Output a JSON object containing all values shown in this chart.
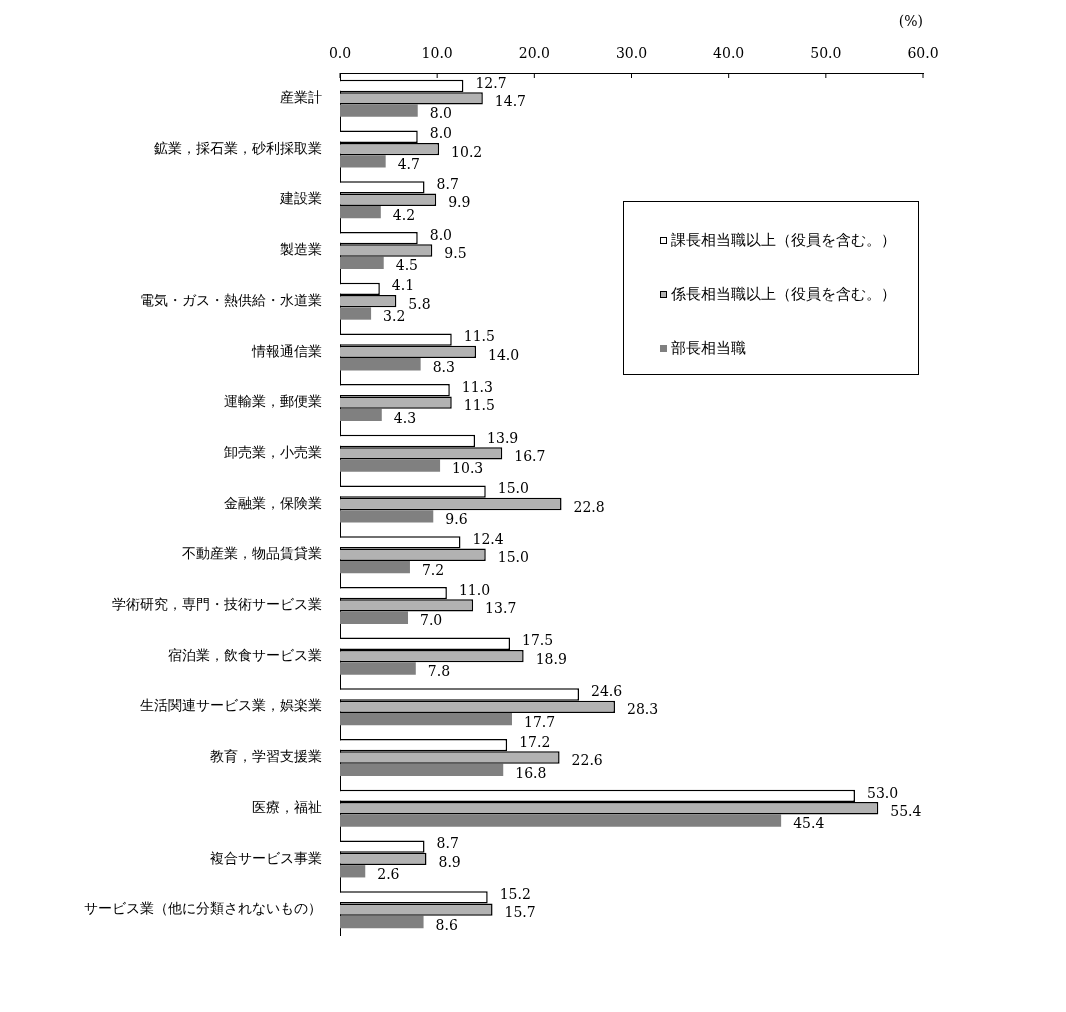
{
  "chart_data": {
    "type": "bar",
    "orientation": "horizontal",
    "xlabel": "(%)",
    "categories": [
      "産業計",
      "鉱業，採石業，砂利採取業",
      "建設業",
      "製造業",
      "電気・ガス・熱供給・水道業",
      "情報通信業",
      "運輸業，郵便業",
      "卸売業，小売業",
      "金融業，保険業",
      "不動産業，物品賃貸業",
      "学術研究，専門・技術サービス業",
      "宿泊業，飲食サービス業",
      "生活関連サービス業，娯楽業",
      "教育，学習支援業",
      "医療，福祉",
      "複合サービス事業",
      "サービス業（他に分類されないもの）"
    ],
    "series": [
      {
        "name": "課長相当職以上（役員を含む。）",
        "color": "#ffffff",
        "values": [
          12.7,
          8.0,
          8.7,
          8.0,
          4.1,
          11.5,
          11.3,
          13.9,
          15.0,
          12.4,
          11.0,
          17.5,
          24.6,
          17.2,
          53.0,
          8.7,
          15.2
        ],
        "value_labels": [
          "12.7",
          "8.0",
          "8.7",
          "8.0",
          "4.1",
          "11.5",
          "11.3",
          "13.9",
          "15.0",
          "12.4",
          "11.0",
          "17.5",
          "24.6",
          "17.2",
          "53.0",
          "8.7",
          "15.2"
        ]
      },
      {
        "name": "係長相当職以上（役員を含む。）",
        "color": "#b2b2b2",
        "values": [
          14.7,
          10.2,
          9.9,
          9.5,
          5.8,
          14.0,
          11.5,
          16.7,
          22.8,
          15.0,
          13.7,
          18.9,
          28.3,
          22.6,
          55.4,
          8.9,
          15.7
        ],
        "value_labels": [
          "14.7",
          "10.2",
          "9.9",
          "9.5",
          "5.8",
          "14.0",
          "11.5",
          "16.7",
          "22.8",
          "15.0",
          "13.7",
          "18.9",
          "28.3",
          "22.6",
          "55.4",
          "8.9",
          "15.7"
        ]
      },
      {
        "name": "部長相当職",
        "color": "#808080",
        "values": [
          8.0,
          4.7,
          4.2,
          4.5,
          3.2,
          8.3,
          4.3,
          10.3,
          9.6,
          7.2,
          7.0,
          7.8,
          17.7,
          16.8,
          45.4,
          2.6,
          8.6
        ],
        "value_labels": [
          "8.0",
          "4.7",
          "4.2",
          "4.5",
          "3.2",
          "8.3",
          "4.3",
          "10.3",
          "9.6",
          "7.2",
          "7.0",
          "7.8",
          "17.7",
          "16.8",
          "45.4",
          "2.6",
          "8.6"
        ]
      }
    ],
    "xlim": [
      0,
      60
    ],
    "xticks": [
      {
        "value": 0,
        "label": "0.0"
      },
      {
        "value": 10,
        "label": "10.0"
      },
      {
        "value": 20,
        "label": "20.0"
      },
      {
        "value": 30,
        "label": "30.0"
      },
      {
        "value": 40,
        "label": "40.0"
      },
      {
        "value": 50,
        "label": "50.0"
      },
      {
        "value": 60,
        "label": "60.0"
      }
    ],
    "legend": "right"
  }
}
